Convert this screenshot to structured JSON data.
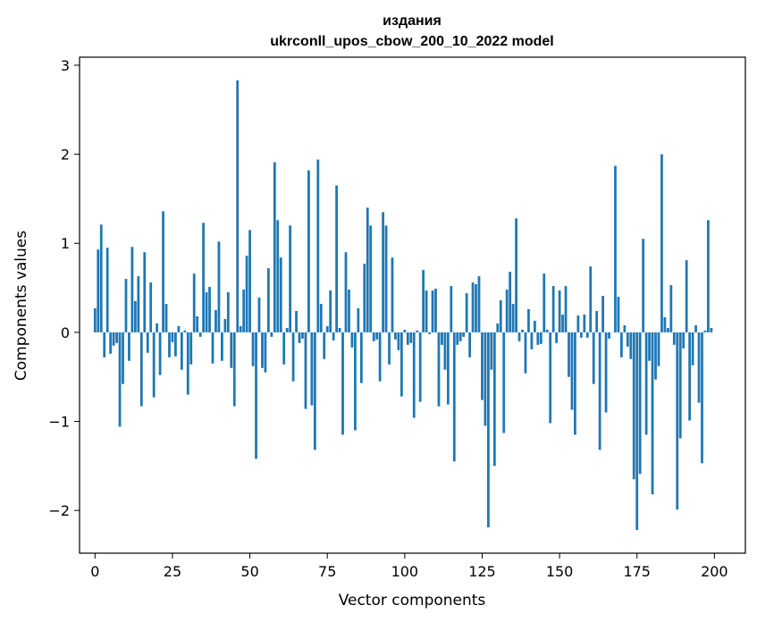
{
  "chart_data": {
    "type": "bar",
    "title_line1": "издания",
    "title_line2": "ukrconll_upos_cbow_200_10_2022 model",
    "xlabel": "Vector components",
    "ylabel": "Components values",
    "xlim": [
      -5,
      210
    ],
    "ylim": [
      -2.48,
      3.09
    ],
    "xticks": [
      0,
      25,
      50,
      75,
      100,
      125,
      150,
      175,
      200
    ],
    "yticks": [
      -2,
      -1,
      0,
      1,
      2,
      3
    ],
    "ytick_labels": [
      "−2",
      "−1",
      "0",
      "1",
      "2",
      "3"
    ],
    "grid": false,
    "bar_color": "#1f77b4",
    "values": [
      0.27,
      0.93,
      1.21,
      -0.28,
      0.95,
      -0.24,
      -0.15,
      -0.12,
      -1.06,
      -0.58,
      0.6,
      -0.32,
      0.96,
      0.35,
      0.63,
      -0.83,
      0.9,
      -0.23,
      0.56,
      -0.73,
      0.1,
      -0.48,
      1.36,
      0.32,
      -0.28,
      -0.11,
      -0.27,
      0.07,
      -0.42,
      0.02,
      -0.7,
      -0.36,
      0.66,
      0.18,
      -0.05,
      1.23,
      0.45,
      0.51,
      -0.35,
      0.25,
      1.02,
      -0.32,
      0.15,
      0.45,
      -0.4,
      -0.83,
      2.83,
      0.07,
      0.48,
      0.86,
      1.15,
      -0.38,
      -1.42,
      0.39,
      -0.4,
      -0.45,
      0.72,
      -0.05,
      1.91,
      1.26,
      0.84,
      -0.36,
      0.05,
      1.2,
      -0.55,
      0.24,
      -0.12,
      -0.07,
      -0.86,
      1.82,
      -0.82,
      -1.32,
      1.94,
      0.32,
      -0.3,
      0.07,
      0.47,
      -0.09,
      1.65,
      0.05,
      -1.15,
      0.9,
      0.48,
      -0.17,
      -1.1,
      0.27,
      -0.57,
      0.77,
      1.4,
      1.2,
      -0.1,
      -0.08,
      -0.55,
      1.35,
      1.2,
      -0.36,
      0.84,
      -0.08,
      -0.2,
      -0.72,
      0.03,
      -0.14,
      -0.12,
      -0.96,
      0.02,
      -0.78,
      0.7,
      0.47,
      -0.02,
      0.47,
      0.49,
      -0.83,
      -0.14,
      -0.42,
      -0.81,
      0.52,
      -1.45,
      -0.14,
      -0.1,
      -0.05,
      0.44,
      -0.28,
      0.56,
      0.54,
      0.63,
      -0.76,
      -1.05,
      -2.19,
      -0.42,
      -1.5,
      0.1,
      0.36,
      -1.13,
      0.48,
      0.68,
      0.32,
      1.28,
      -0.1,
      0.03,
      -0.46,
      0.26,
      -0.19,
      0.13,
      -0.14,
      -0.13,
      0.66,
      0.03,
      -1.02,
      0.52,
      -0.12,
      0.47,
      0.2,
      0.52,
      -0.5,
      -0.87,
      -1.15,
      0.19,
      -0.06,
      0.2,
      -0.06,
      0.74,
      -0.58,
      0.24,
      -1.32,
      0.41,
      -0.9,
      -0.07,
      0.0,
      1.87,
      0.4,
      -0.28,
      0.08,
      -0.16,
      -0.3,
      -1.65,
      -2.22,
      -1.59,
      1.05,
      -1.15,
      -0.32,
      -1.82,
      -0.53,
      -0.38,
      2.0,
      0.17,
      0.05,
      0.53,
      -0.14,
      -1.99,
      -1.19,
      -0.18,
      0.81,
      -0.99,
      -0.37,
      0.08,
      -0.79,
      -1.47,
      0.02,
      1.26,
      0.05
    ]
  }
}
